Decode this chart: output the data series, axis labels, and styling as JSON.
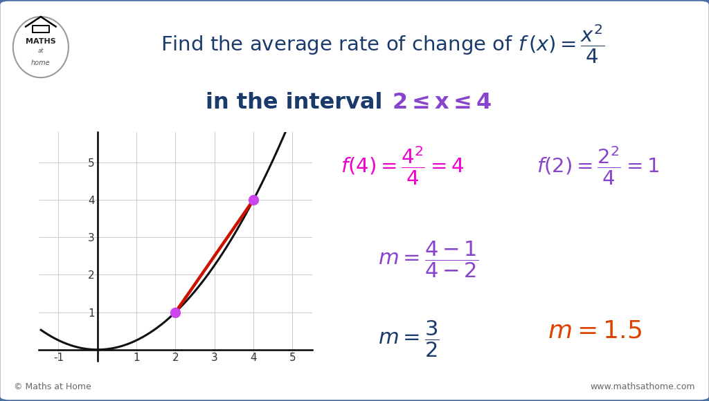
{
  "bg_color": "#ffffff",
  "border_color": "#4a6fa5",
  "title_color": "#1a3a6b",
  "interval_text_color": "#1a3a6b",
  "interval_math_color": "#8844cc",
  "magenta_color": "#ee00cc",
  "purple_color": "#8844cc",
  "orange_red": "#dd4400",
  "curve_color": "#111111",
  "secant_color": "#cc1100",
  "point_color": "#cc44ee",
  "grid_color": "#cccccc",
  "graph_xlim": [
    -1.5,
    5.5
  ],
  "graph_ylim": [
    -0.3,
    5.8
  ],
  "point1": [
    2,
    1
  ],
  "point2": [
    4,
    4
  ],
  "footer_left": "© Maths at Home",
  "footer_right": "www.mathsathome.com"
}
